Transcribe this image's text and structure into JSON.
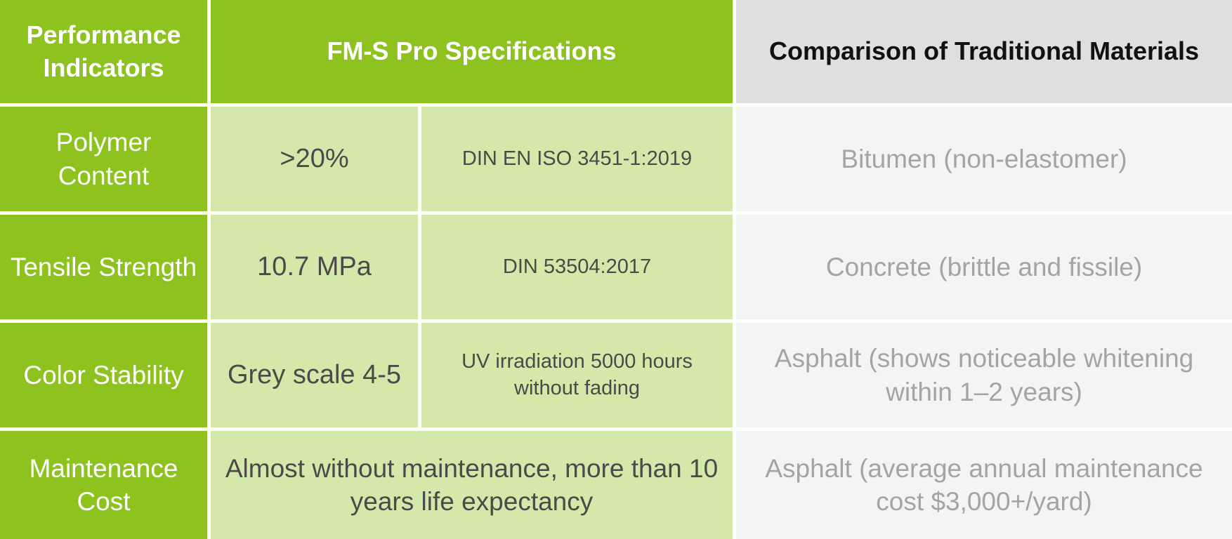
{
  "header": {
    "indicators": "Performance Indicators",
    "specs": "FM-S Pro Specifications",
    "comparison": "Comparison of Traditional Materials"
  },
  "rows": [
    {
      "indicator": "Polymer Content",
      "value": ">20%",
      "method": "DIN EN ISO 3451-1:2019",
      "comparison": "Bitumen (non-elastomer)"
    },
    {
      "indicator": "Tensile Strength",
      "value": "10.7 MPa",
      "method": "DIN 53504:2017",
      "comparison": "Concrete (brittle and fissile)"
    },
    {
      "indicator": "Color Stability",
      "value": "Grey scale 4-5",
      "method": "UV irradiation 5000 hours without fading",
      "comparison": "Asphalt (shows noticeable whitening within 1–2 years)"
    },
    {
      "indicator": "Maintenance Cost",
      "combined": "Almost without maintenance, more than 10 years life expectancy",
      "comparison": "Asphalt (average annual maintenance cost $3,000+/yard)"
    }
  ],
  "colors": {
    "green": "#8dc21f",
    "light_green": "#d4e8aa",
    "header_grey": "#dedfdf",
    "light_grey": "#f3f4f4"
  }
}
